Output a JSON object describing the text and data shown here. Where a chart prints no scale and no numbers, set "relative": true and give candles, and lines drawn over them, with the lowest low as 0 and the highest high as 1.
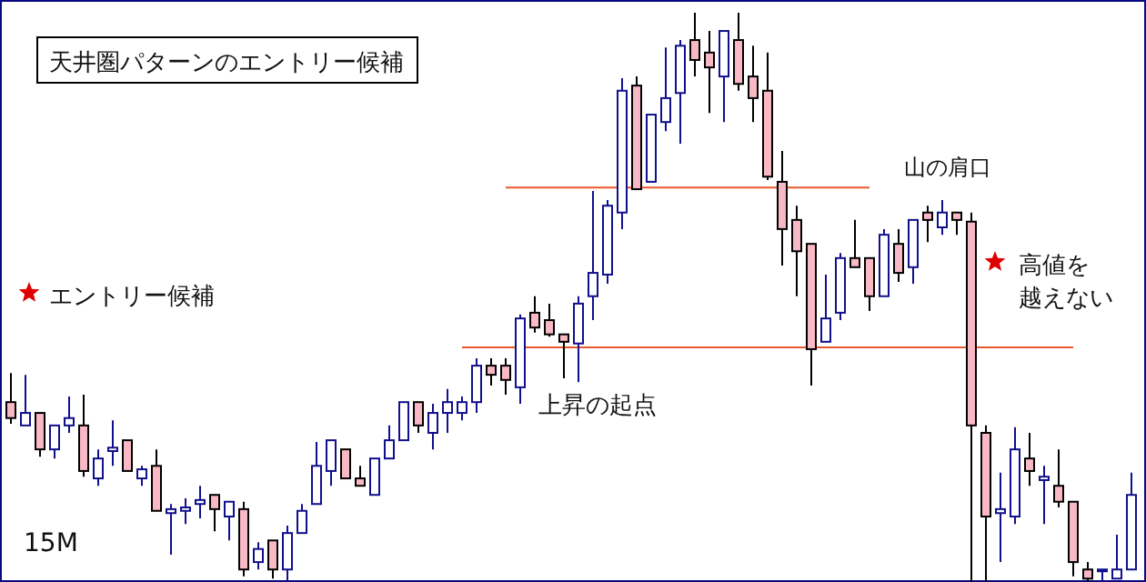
{
  "chart_data": {
    "type": "candlestick",
    "title": "天井圏パターンのエントリー候補",
    "relative": true,
    "categories": [
      null,
      null,
      null,
      null,
      null,
      null,
      null,
      null,
      null,
      null,
      null,
      null,
      null,
      null,
      null,
      null,
      null,
      null,
      null,
      null,
      null,
      null,
      null,
      null,
      null,
      null,
      null,
      null,
      null,
      null,
      null,
      null,
      null,
      null,
      null,
      null,
      null,
      null,
      null,
      null,
      null,
      null,
      null,
      null,
      null,
      null,
      null,
      null,
      null,
      null,
      null,
      null,
      null,
      null,
      null,
      null,
      null,
      null,
      null,
      null,
      null,
      null,
      null,
      null,
      null,
      null,
      null,
      null,
      null,
      null,
      null,
      null,
      null,
      null,
      null,
      null,
      null,
      null
    ],
    "ohlc": [
      [
        0.316,
        0.367,
        0.278,
        0.288
      ],
      [
        0.275,
        0.364,
        0.275,
        0.297
      ],
      [
        0.297,
        0.297,
        0.22,
        0.233
      ],
      [
        0.233,
        0.275,
        0.217,
        0.275
      ],
      [
        0.275,
        0.326,
        0.262,
        0.288
      ],
      [
        0.275,
        0.329,
        0.185,
        0.195
      ],
      [
        0.182,
        0.233,
        0.169,
        0.217
      ],
      [
        0.23,
        0.284,
        0.204,
        0.236
      ],
      [
        0.249,
        0.249,
        0.195,
        0.195
      ],
      [
        0.182,
        0.204,
        0.169,
        0.198
      ],
      [
        0.204,
        0.233,
        0.125,
        0.125
      ],
      [
        0.121,
        0.137,
        0.048,
        0.128
      ],
      [
        0.125,
        0.147,
        0.102,
        0.131
      ],
      [
        0.137,
        0.169,
        0.112,
        0.144
      ],
      [
        0.153,
        0.153,
        0.089,
        0.128
      ],
      [
        0.115,
        0.141,
        0.073,
        0.141
      ],
      [
        0.128,
        0.141,
        0.01,
        0.022
      ],
      [
        0.035,
        0.07,
        0.022,
        0.058
      ],
      [
        0.073,
        0.073,
        0.006,
        0.022
      ],
      [
        0.022,
        0.099,
        0,
        0.086
      ],
      [
        0.086,
        0.137,
        0.086,
        0.125
      ],
      [
        0.137,
        0.246,
        0.137,
        0.204
      ],
      [
        0.195,
        0.249,
        0.169,
        0.249
      ],
      [
        0.233,
        0.233,
        0.182,
        0.182
      ],
      [
        0.182,
        0.204,
        0.169,
        0.169
      ],
      [
        0.153,
        0.217,
        0.153,
        0.217
      ],
      [
        0.217,
        0.275,
        0.217,
        0.249
      ],
      [
        0.249,
        0.316,
        0.249,
        0.316
      ],
      [
        0.316,
        0.316,
        0.262,
        0.275
      ],
      [
        0.262,
        0.313,
        0.233,
        0.297
      ],
      [
        0.297,
        0.339,
        0.262,
        0.316
      ],
      [
        0.297,
        0.326,
        0.284,
        0.316
      ],
      [
        0.316,
        0.393,
        0.297,
        0.38
      ],
      [
        0.38,
        0.393,
        0.345,
        0.364
      ],
      [
        0.38,
        0.393,
        0.329,
        0.355
      ],
      [
        0.342,
        0.47,
        0.313,
        0.463
      ],
      [
        0.473,
        0.502,
        0.438,
        0.447
      ],
      [
        0.46,
        0.489,
        0.431,
        0.435
      ],
      [
        0.435,
        0.435,
        0.358,
        0.422
      ],
      [
        0.419,
        0.502,
        0.351,
        0.489
      ],
      [
        0.502,
        0.687,
        0.46,
        0.543
      ],
      [
        0.54,
        0.671,
        0.524,
        0.661
      ],
      [
        0.649,
        0.885,
        0.62,
        0.863
      ],
      [
        0.872,
        0.888,
        0.69,
        0.69
      ],
      [
        0.703,
        0.821,
        0.703,
        0.821
      ],
      [
        0.808,
        0.939,
        0.792,
        0.85
      ],
      [
        0.859,
        0.952,
        0.77,
        0.942
      ],
      [
        0.952,
        1,
        0.888,
        0.917
      ],
      [
        0.93,
        0.968,
        0.824,
        0.904
      ],
      [
        0.888,
        0.968,
        0.808,
        0.968
      ],
      [
        0.952,
        1,
        0.863,
        0.875
      ],
      [
        0.888,
        0.942,
        0.808,
        0.85
      ],
      [
        0.863,
        0.93,
        0.706,
        0.712
      ],
      [
        0.703,
        0.757,
        0.556,
        0.62
      ],
      [
        0.636,
        0.661,
        0.502,
        0.581
      ],
      [
        0.594,
        0.594,
        0.345,
        0.409
      ],
      [
        0.422,
        0.54,
        0.422,
        0.463
      ],
      [
        0.473,
        0.578,
        0.46,
        0.569
      ],
      [
        0.569,
        0.636,
        0.553,
        0.553
      ],
      [
        0.569,
        0.569,
        0.476,
        0.502
      ],
      [
        0.502,
        0.62,
        0.502,
        0.61
      ],
      [
        0.594,
        0.62,
        0.527,
        0.543
      ],
      [
        0.553,
        0.636,
        0.524,
        0.636
      ],
      [
        0.649,
        0.661,
        0.597,
        0.636
      ],
      [
        0.623,
        0.671,
        0.61,
        0.649
      ],
      [
        0.649,
        0.649,
        0.61,
        0.636
      ],
      [
        0.633,
        0.649,
        0,
        0.275
      ],
      [
        0.262,
        0.275,
        0,
        0.115
      ],
      [
        0.121,
        0.192,
        0.035,
        0.128
      ],
      [
        0.115,
        0.272,
        0.102,
        0.233
      ],
      [
        0.217,
        0.262,
        0.169,
        0.195
      ],
      [
        0.179,
        0.204,
        0.102,
        0.185
      ],
      [
        0.169,
        0.233,
        0.131,
        0.141
      ],
      [
        0.141,
        0.141,
        0.01,
        0.035
      ],
      [
        0.022,
        0.035,
        0,
        0.006
      ],
      [
        0.019,
        0.022,
        0,
        0.022
      ],
      [
        0.006,
        0.083,
        0.006,
        0.022
      ],
      [
        0.022,
        0.192,
        0.022,
        0.153
      ]
    ],
    "ref_lines": [
      {
        "axis": "y",
        "value": 0.693,
        "color": "#e8582c"
      },
      {
        "axis": "y",
        "value": 0.412,
        "color": "#e8582c"
      }
    ],
    "annotations": [
      "エントリー候補",
      "上昇の起点",
      "山の肩口",
      "高値を",
      "越えない",
      "15M"
    ]
  }
}
